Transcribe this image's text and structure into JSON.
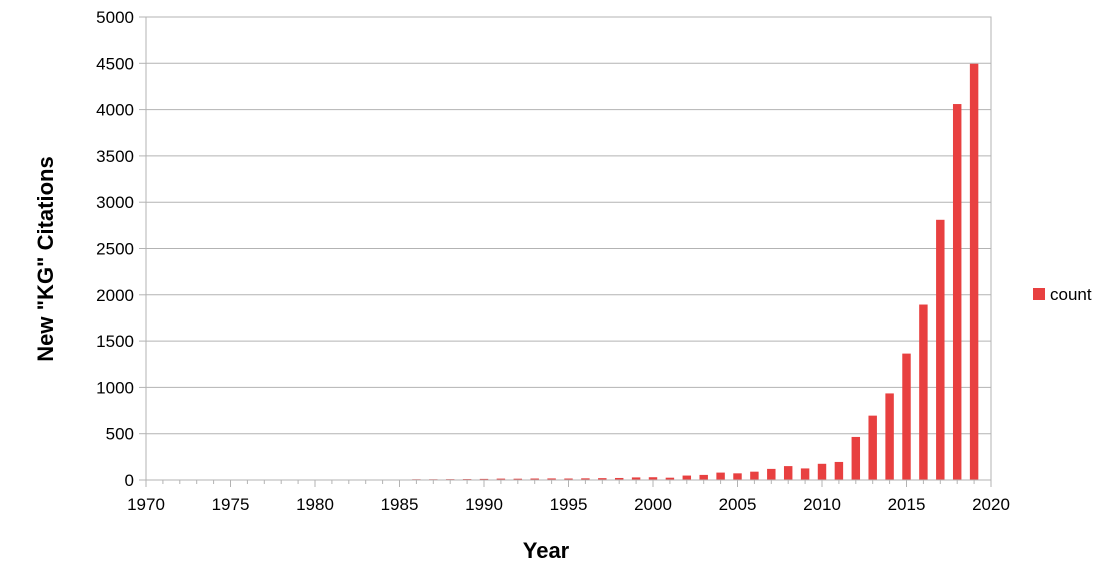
{
  "chart_data": {
    "type": "bar",
    "xlabel": "Year",
    "ylabel": "New \"KG\" Citations",
    "xlim": [
      1970,
      2020
    ],
    "ylim": [
      0,
      5000
    ],
    "x_ticks": [
      "1970",
      "1975",
      "1980",
      "1985",
      "1990",
      "1995",
      "2000",
      "2005",
      "2010",
      "2015",
      "2020"
    ],
    "y_ticks": [
      "0",
      "500",
      "1000",
      "1500",
      "2000",
      "2500",
      "3000",
      "3500",
      "4000",
      "4500",
      "5000"
    ],
    "grid": true,
    "legend_position": "right",
    "colors": {
      "bar": "#e84040",
      "grid": "#b3b3b3",
      "axis": "#b3b3b3"
    },
    "series": [
      {
        "name": "count",
        "x": [
          1971,
          1972,
          1973,
          1974,
          1975,
          1976,
          1977,
          1978,
          1979,
          1980,
          1981,
          1982,
          1983,
          1984,
          1985,
          1986,
          1987,
          1988,
          1989,
          1990,
          1991,
          1992,
          1993,
          1994,
          1995,
          1996,
          1997,
          1998,
          1999,
          2000,
          2001,
          2002,
          2003,
          2004,
          2005,
          2006,
          2007,
          2008,
          2009,
          2010,
          2011,
          2012,
          2013,
          2014,
          2015,
          2016,
          2017,
          2018,
          2019
        ],
        "values": [
          1,
          1,
          2,
          1,
          2,
          1,
          2,
          2,
          2,
          3,
          3,
          3,
          3,
          4,
          5,
          8,
          8,
          9,
          10,
          12,
          15,
          14,
          16,
          17,
          16,
          18,
          20,
          22,
          28,
          30,
          25,
          48,
          55,
          80,
          72,
          90,
          120,
          150,
          125,
          175,
          195,
          465,
          695,
          935,
          1365,
          1895,
          2810,
          4060,
          4495
        ]
      }
    ]
  }
}
